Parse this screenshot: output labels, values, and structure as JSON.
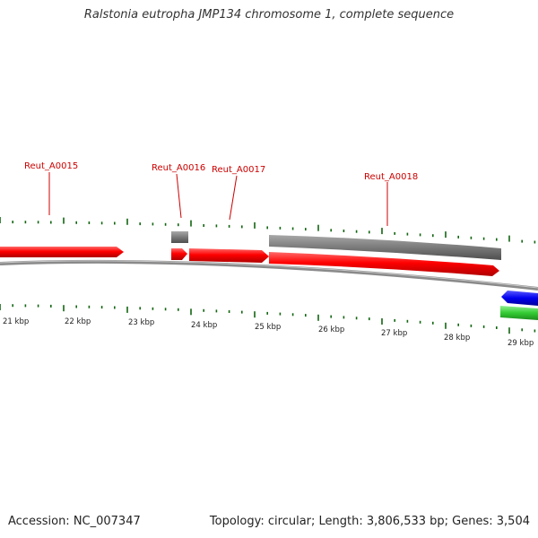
{
  "title": "Ralstonia eutropha JMP134 chromosome 1, complete sequence",
  "footer": {
    "accession": "Accession: NC_007347",
    "summary": "Topology: circular; Length: 3,806,533 bp; Genes: 3,504"
  },
  "colors": {
    "forward_cds": "#ff0000",
    "gene_bar": "#808080",
    "reverse_cds": "#0000ff",
    "rna": "#33cc33",
    "label": "#cc0000",
    "tick": "#116611",
    "backbone": "#888888"
  },
  "gene_labels": [
    "Reut_A0015",
    "Reut_A0016",
    "Reut_A0017",
    "Reut_A0018"
  ],
  "kbp_labels": [
    "21 kbp",
    "22 kbp",
    "23 kbp",
    "24 kbp",
    "25 kbp",
    "26 kbp",
    "27 kbp",
    "28 kbp",
    "29 kbp"
  ]
}
